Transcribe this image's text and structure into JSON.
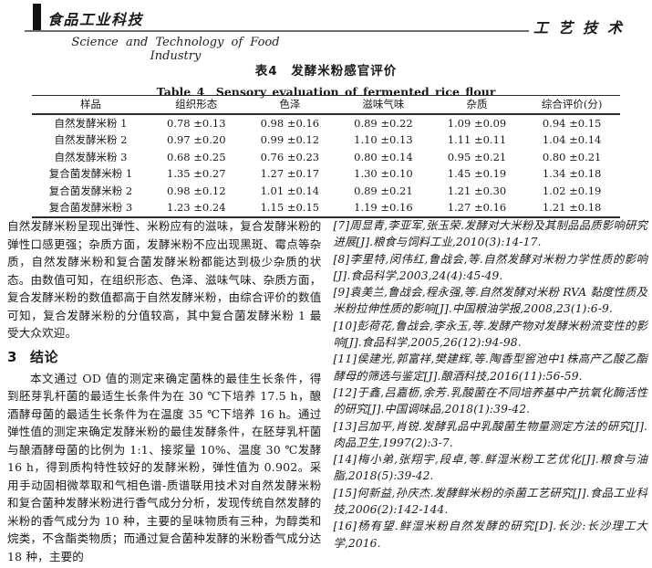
{
  "header": {
    "journal_logo_zh": "食品工业科技",
    "journal_name_en": "Science and Technology of Food Industry",
    "section_label": "工艺技术"
  },
  "table": {
    "title_zh": "表4　发酵米粉感官评价",
    "title_en": "Table 4　Sensory evaluation of fermented rice flour",
    "columns": [
      "样品",
      "组织形态",
      "色泽",
      "滋味气味",
      "杂质",
      "综合评价(分)"
    ],
    "rows": [
      [
        "自然发酵米粉 1",
        "0.78 ±0.13",
        "0.98 ±0.16",
        "0.89 ±0.22",
        "1.09 ±0.09",
        "0.94 ±0.15"
      ],
      [
        "自然发酵米粉 2",
        "0.97 ±0.20",
        "0.99 ±0.12",
        "1.10 ±0.13",
        "1.11 ±0.11",
        "1.04 ±0.14"
      ],
      [
        "自然发酵米粉 3",
        "0.68 ±0.25",
        "0.76 ±0.23",
        "0.80 ±0.14",
        "0.95 ±0.21",
        "0.80 ±0.21"
      ],
      [
        "复合菌发酵米粉 1",
        "1.35 ±0.27",
        "1.27 ±0.17",
        "1.30 ±0.10",
        "1.45 ±0.19",
        "1.34 ±0.18"
      ],
      [
        "复合菌发酵米粉 2",
        "0.98 ±0.12",
        "1.01 ±0.14",
        "0.89 ±0.21",
        "1.21 ±0.30",
        "1.02 ±0.19"
      ],
      [
        "复合菌发酵米粉 3",
        "1.23 ±0.24",
        "1.15 ±0.15",
        "1.19 ±0.16",
        "1.27 ±0.16",
        "1.21 ±0.18"
      ]
    ]
  },
  "left_column": {
    "paragraph1": "自然发酵米粉呈现出弹性、米粉应有的滋味，复合发酵米粉的弹性口感更强；杂质方面，发酵米粉不应出现黑斑、霉点等杂质，自然发酵米粉和复合菌发酵米粉都能达到极少杂质的状态。由数值可知，在组织形态、色泽、滋味气味、杂质方面，复合发酵米粉的数值都高于自然发酵米粉，由综合评价的数值可知，复合发酵米粉的分值较高，其中复合菌发酵米粉 1 最受大众欢迎。",
    "heading_number": "3",
    "heading_text": "结论",
    "paragraph2": "本文通过 OD 值的测定来确定菌株的最佳生长条件，得到胚芽乳杆菌的最适生长条件为在 30 ℃下培养 17.5 h，酿酒酵母菌的最适生长条件为在温度 35 ℃下培养 16 h。通过弹性值的测定来确定发酵米粉的最佳发酵条件，在胚芽乳杆菌与酿酒酵母菌的比例为 1:1、接浆量 10%、温度 30 ℃发酵 16 h，得到质构特性较好的发酵米粉，弹性值为 0.902。采用手动固相微萃取和气相色谱-质谱联用技术对自然发酵米粉和复合菌种发酵米粉进行香气成分分析，发现传统自然发酵的米粉的香气成分为 10 种，主要的呈味物质有三种，为醇类和烷类，不含酯类物质；而通过复合菌种发酵的米粉香气成分达 18 种，主要的"
  },
  "references": [
    "[7]周显青,李亚军,张玉荣.发酵对大米粉及其制品品质影响研究进展[J].粮食与饲料工业,2010(3):14-17.",
    "[8]李里特,闵伟红,鲁战会,等.自然发酵对米粉力学性质的影响[J].食品科学,2003,24(4):45-49.",
    "[9]袁美兰,鲁战会,程永强,等.自然发酵对米粉 RVA 黏度性质及米粉拉伸性质的影响[J].中国粮油学报,2008,23(1):6-9.",
    "[10]彭荷花,鲁战会,李永玉,等.发酵产物对发酵米粉流变性的影响[J].食品科学,2005,26(12):94-98.",
    "[11]侯建光,郭富祥,樊建辉,等.陶香型窖池中1株高产乙酸乙酯酵母的筛选与鉴定[J].酿酒科技,2016(11):56-59.",
    "[12]于鑫,吕嘉枥,余芳.乳酸菌在不同培养基中产抗氧化酶活性的研究[J].中国调味品,2018(1):39-42.",
    "[13]吕加平,肖锐.发酵乳品中乳酸菌生物量测定方法的研究[J].肉品卫生,1997(2):3-7.",
    "[14]梅小弟,张翔宇,段卓,等.鲜湿米粉工艺优化[J].粮食与油脂,2018(5):39-42.",
    "[15]何新益,孙庆杰.发酵鲜米粉的杀菌工艺研究[J].食品工业科技,2006(2):142-144.",
    "[16]杨有望.鲜湿米粉自然发酵的研究[D].长沙:长沙理工大学,2016."
  ],
  "colors": {
    "text": "#1a1a1a",
    "header_rule": "#6e6e6e",
    "table_border": "#2a2a2a",
    "background": "#ffffff"
  }
}
